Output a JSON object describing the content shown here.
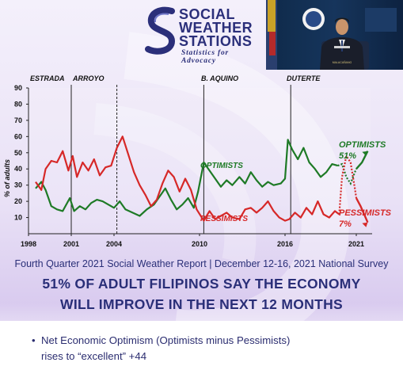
{
  "logo": {
    "line1": "SOCIAL",
    "line2": "WEATHER",
    "line3": "STATIONS",
    "tagline": "Statistics for Advocacy"
  },
  "video": {
    "podium_text": "MALACAÑANG"
  },
  "chart_data": {
    "type": "line",
    "ylabel": "% of adults",
    "ylim": [
      0,
      90
    ],
    "yticks": [
      10,
      20,
      30,
      40,
      50,
      60,
      70,
      80,
      90
    ],
    "xlim": [
      1998,
      2022
    ],
    "xticks": [
      1998,
      2001,
      2004,
      2010,
      2016,
      2021
    ],
    "grid": false,
    "eras": [
      {
        "label": "ESTRADA",
        "start": 1998
      },
      {
        "label": "ARROYO",
        "start": 2001
      },
      {
        "label": "B. AQUINO",
        "start": 2010
      },
      {
        "label": "DUTERTE",
        "start": 2016
      }
    ],
    "era_dividers": [
      {
        "x": 2001,
        "style": "solid"
      },
      {
        "x": 2004.2,
        "style": "dashed"
      },
      {
        "x": 2010.3,
        "style": "solid"
      },
      {
        "x": 2016.4,
        "style": "solid"
      }
    ],
    "series": [
      {
        "name": "OPTIMISTS",
        "color": "#1e7a26",
        "inline_label": "OPTIMISTS",
        "end_label": "OPTIMISTS",
        "end_value_label": "51%",
        "points": [
          [
            1998.5,
            28
          ],
          [
            1998.9,
            32
          ],
          [
            1999.2,
            27
          ],
          [
            1999.6,
            17
          ],
          [
            2000.0,
            15
          ],
          [
            2000.4,
            14
          ],
          [
            2000.9,
            22
          ],
          [
            2001.2,
            14
          ],
          [
            2001.6,
            17
          ],
          [
            2002.0,
            15
          ],
          [
            2002.4,
            19
          ],
          [
            2002.8,
            21
          ],
          [
            2003.2,
            20
          ],
          [
            2003.6,
            18
          ],
          [
            2004.0,
            16
          ],
          [
            2004.4,
            20
          ],
          [
            2004.8,
            15
          ],
          [
            2005.3,
            13
          ],
          [
            2005.8,
            11
          ],
          [
            2006.3,
            15
          ],
          [
            2006.8,
            18
          ],
          [
            2007.2,
            23
          ],
          [
            2007.6,
            28
          ],
          [
            2008.0,
            21
          ],
          [
            2008.4,
            15
          ],
          [
            2008.8,
            18
          ],
          [
            2009.2,
            22
          ],
          [
            2009.6,
            16
          ],
          [
            2009.9,
            26
          ],
          [
            2010.3,
            44
          ],
          [
            2010.7,
            39
          ],
          [
            2011.1,
            34
          ],
          [
            2011.5,
            29
          ],
          [
            2011.9,
            33
          ],
          [
            2012.3,
            30
          ],
          [
            2012.8,
            35
          ],
          [
            2013.2,
            31
          ],
          [
            2013.6,
            38
          ],
          [
            2014.0,
            33
          ],
          [
            2014.4,
            29
          ],
          [
            2014.8,
            32
          ],
          [
            2015.2,
            30
          ],
          [
            2015.7,
            31
          ],
          [
            2016.0,
            34
          ],
          [
            2016.2,
            58
          ],
          [
            2016.5,
            52
          ],
          [
            2016.9,
            46
          ],
          [
            2017.3,
            53
          ],
          [
            2017.7,
            44
          ],
          [
            2018.1,
            40
          ],
          [
            2018.5,
            35
          ],
          [
            2018.9,
            38
          ],
          [
            2019.3,
            43
          ],
          [
            2019.7,
            42
          ]
        ],
        "pandemic_points": [
          [
            2019.7,
            42
          ],
          [
            2020.0,
            43
          ],
          [
            2020.3,
            35
          ],
          [
            2020.6,
            31
          ],
          [
            2020.9,
            38
          ],
          [
            2021.0,
            40
          ]
        ],
        "recent_points": [
          [
            2021.0,
            40
          ],
          [
            2021.4,
            44
          ],
          [
            2021.8,
            51
          ]
        ]
      },
      {
        "name": "PESSIMISTS",
        "color": "#d62828",
        "inline_label": "PESSIMISTS",
        "end_label": "PESSIMISTS",
        "end_value_label": "7%",
        "points": [
          [
            1998.5,
            32
          ],
          [
            1998.9,
            27
          ],
          [
            1999.2,
            40
          ],
          [
            1999.6,
            45
          ],
          [
            2000.0,
            44
          ],
          [
            2000.4,
            51
          ],
          [
            2000.8,
            39
          ],
          [
            2001.1,
            48
          ],
          [
            2001.4,
            35
          ],
          [
            2001.8,
            44
          ],
          [
            2002.2,
            39
          ],
          [
            2002.6,
            46
          ],
          [
            2003.0,
            36
          ],
          [
            2003.4,
            41
          ],
          [
            2003.8,
            42
          ],
          [
            2004.2,
            53
          ],
          [
            2004.6,
            60
          ],
          [
            2005.0,
            49
          ],
          [
            2005.4,
            38
          ],
          [
            2005.8,
            30
          ],
          [
            2006.2,
            24
          ],
          [
            2006.6,
            17
          ],
          [
            2007.0,
            21
          ],
          [
            2007.4,
            31
          ],
          [
            2007.8,
            39
          ],
          [
            2008.2,
            35
          ],
          [
            2008.6,
            26
          ],
          [
            2009.0,
            34
          ],
          [
            2009.4,
            27
          ],
          [
            2009.8,
            15
          ],
          [
            2010.3,
            8
          ],
          [
            2010.7,
            14
          ],
          [
            2011.1,
            9
          ],
          [
            2011.5,
            11
          ],
          [
            2011.9,
            13
          ],
          [
            2012.3,
            10
          ],
          [
            2012.8,
            9
          ],
          [
            2013.2,
            15
          ],
          [
            2013.6,
            16
          ],
          [
            2014.0,
            13
          ],
          [
            2014.4,
            16
          ],
          [
            2014.8,
            20
          ],
          [
            2015.2,
            14
          ],
          [
            2015.6,
            10
          ],
          [
            2016.0,
            8
          ],
          [
            2016.3,
            9
          ],
          [
            2016.7,
            13
          ],
          [
            2017.1,
            10
          ],
          [
            2017.5,
            16
          ],
          [
            2017.9,
            12
          ],
          [
            2018.3,
            20
          ],
          [
            2018.7,
            12
          ],
          [
            2019.1,
            10
          ],
          [
            2019.5,
            14
          ],
          [
            2019.8,
            12
          ]
        ],
        "pandemic_points": [
          [
            2019.8,
            12
          ],
          [
            2020.0,
            35
          ],
          [
            2020.3,
            48
          ],
          [
            2020.6,
            44
          ],
          [
            2020.9,
            28
          ],
          [
            2021.0,
            22
          ]
        ],
        "recent_points": [
          [
            2021.0,
            22
          ],
          [
            2021.3,
            17
          ],
          [
            2021.8,
            7
          ]
        ]
      }
    ]
  },
  "report": {
    "subtitle": "Fourth Quarter 2021 Social Weather Report | December 12-16, 2021 National Survey",
    "headline_line1": "51% OF ADULT FILIPINOS SAY THE ECONOMY",
    "headline_line2": "WILL IMPROVE IN THE NEXT 12 MONTHS"
  },
  "bullet": {
    "line1": "Net Economic Optimism (Optimists minus Pessimists)",
    "line2": "rises to “excellent” +44"
  },
  "colors": {
    "navy": "#2a2f78",
    "optimists": "#1e7a26",
    "pessimists": "#d62828"
  }
}
